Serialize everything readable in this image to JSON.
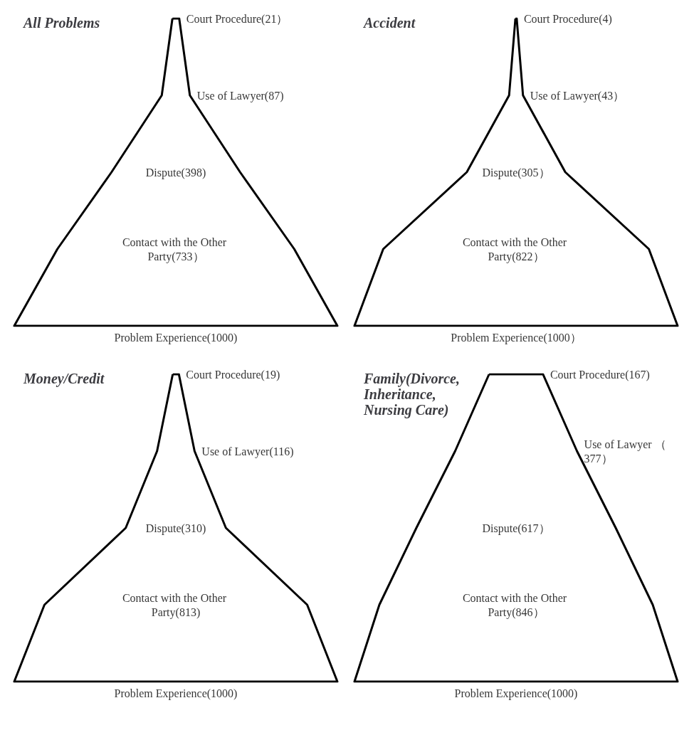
{
  "chart_data": [
    {
      "type": "other",
      "title": "All Problems",
      "color": "#000000",
      "values": [
        21,
        87,
        398,
        733,
        1000
      ],
      "value_labels": [
        "Court Procedure(21）",
        "Use of Lawyer(87)",
        "Dispute(398)",
        "Contact with the Other Party(733）",
        "Problem Experience(1000)"
      ]
    },
    {
      "type": "other",
      "title": "Accident",
      "color": "#000000",
      "values": [
        4,
        43,
        305,
        822,
        1000
      ],
      "value_labels": [
        "Court Procedure(4)",
        "Use of Lawyer(43）",
        "Dispute(305）",
        "Contact with the Other Party(822）",
        "Problem Experience(1000）"
      ]
    },
    {
      "type": "other",
      "title": "Money/Credit",
      "color": "#000000",
      "values": [
        19,
        116,
        310,
        813,
        1000
      ],
      "value_labels": [
        "Court Procedure(19)",
        "Use of Lawyer(116)",
        "Dispute(310)",
        "Contact with the Other Party(813)",
        "Problem Experience(1000)"
      ]
    },
    {
      "type": "other",
      "title": "Family(Divorce, Inheritance, Nursing Care)",
      "color": "#000000",
      "values": [
        167,
        377,
        617,
        846,
        1000
      ],
      "value_labels": [
        "Court Procedure(167)",
        "Use of Lawyer （377）",
        "Dispute(617）",
        "Contact with the Other Party(846）",
        "Problem Experience(1000)"
      ]
    }
  ]
}
